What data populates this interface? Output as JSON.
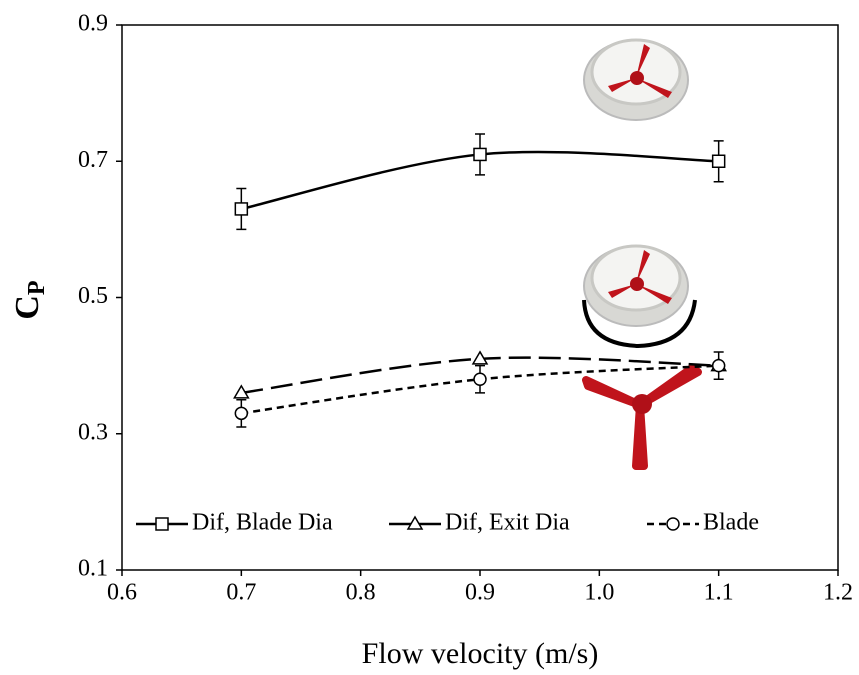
{
  "chart_data": {
    "type": "line",
    "x_label": "Flow velocity (m/s)",
    "y_label": "C",
    "y_label_subscript": "P",
    "x": [
      0.7,
      0.9,
      1.1
    ],
    "xlim": [
      0.6,
      1.2
    ],
    "xticks": [
      0.6,
      0.7,
      0.8,
      0.9,
      {
        "value": 1,
        "label": "1.0"
      },
      1.1,
      1.2
    ],
    "ylim": [
      0.1,
      0.9
    ],
    "yticks": [
      0.1,
      0.3,
      0.5,
      0.7,
      0.9
    ],
    "series": [
      {
        "name": "Dif, Blade Dia",
        "color": "#000000",
        "dash": "solid",
        "marker": "square",
        "values": [
          0.63,
          0.71,
          0.7
        ],
        "errors": [
          0.03,
          0.03,
          0.03
        ]
      },
      {
        "name": "Dif, Exit Dia",
        "color": "#000000",
        "dash": "long",
        "marker": "triangle",
        "values": [
          0.36,
          0.41,
          0.4
        ]
      },
      {
        "name": "Blade",
        "color": "#000000",
        "dash": "short",
        "marker": "circle",
        "values": [
          0.33,
          0.38,
          0.4
        ],
        "errors": [
          0.02,
          0.02,
          0.02
        ]
      }
    ]
  }
}
